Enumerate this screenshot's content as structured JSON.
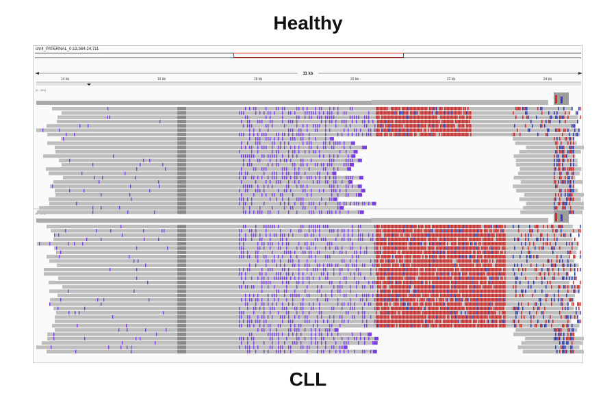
{
  "titles": {
    "top": "Healthy",
    "bottom": "CLL"
  },
  "igv": {
    "locus": "chr4_PATERNAL_0:13,364-24,711",
    "span_label": "11 kb",
    "ticks": [
      "14 kb",
      "16 kb",
      "18 kb",
      "20 kb",
      "22 kb",
      "24 kb"
    ],
    "tracks": [
      {
        "name": "[0 - 151]"
      },
      {
        "name": "[0 - 161]"
      }
    ]
  },
  "colors": {
    "read": "#bdbdbd",
    "read_dark": "#8a8a8a",
    "coverage": "#a9a9a9",
    "insertion": "#7b3fe4",
    "mismatch_red": "#f21d1d",
    "mismatch_blue": "#2a3bd6",
    "ideogram_highlight": "#e21b1b"
  }
}
